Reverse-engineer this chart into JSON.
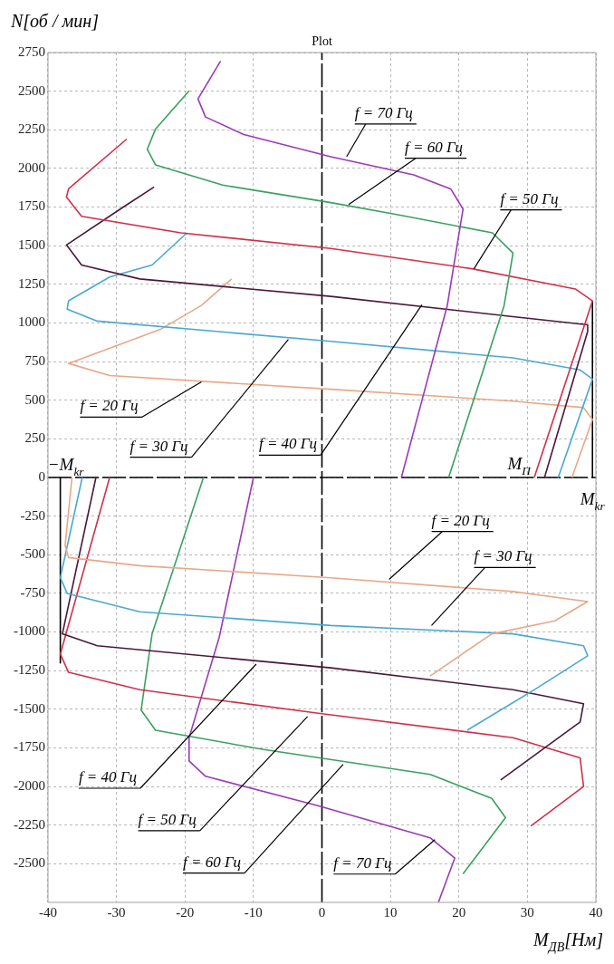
{
  "chart_data": {
    "type": "line",
    "title": "Plot",
    "xlabel": "M$_{ДВ}$[Нм]",
    "ylabel": "N[об / мин]",
    "xlim": [
      -40,
      40
    ],
    "xticks": [
      -40,
      -30,
      -20,
      -10,
      0,
      10,
      20,
      30,
      40
    ],
    "ylim": [
      -2750,
      2750
    ],
    "yticks": [
      -2500,
      -2250,
      -2000,
      -1750,
      -1500,
      -1250,
      -1000,
      -750,
      -500,
      -250,
      0,
      250,
      500,
      750,
      1000,
      1250,
      1500,
      1750,
      2000,
      2250,
      2500,
      2750
    ],
    "grid": true,
    "legend": false,
    "marker": "none",
    "series": [
      {
        "color": "#9a3ab8",
        "x": [
          -14.8,
          -18.1,
          -17,
          -11.4,
          1.3,
          13.4,
          18.8,
          20.6,
          18.3,
          11.6
        ],
        "values": [
          2695,
          2450,
          2333,
          2219,
          2076,
          1958,
          1868,
          1737,
          1113,
          0
        ]
      },
      {
        "color": "#3aa060",
        "x": [
          -19.4,
          -24.3,
          -25.5,
          -24.3,
          -14.5,
          1.3,
          10.9,
          24.9,
          27.9,
          26.6,
          18.5
        ],
        "values": [
          2502,
          2255,
          2124,
          2023,
          1892,
          1779,
          1702,
          1583,
          1452,
          1113,
          0
        ]
      },
      {
        "color": "#d0304a",
        "x": [
          -28.5,
          -37,
          -37.3,
          -35.1,
          -20.6,
          1.3,
          21.9,
          37,
          39.5,
          31
        ],
        "values": [
          2190,
          1868,
          1815,
          1690,
          1583,
          1482,
          1351,
          1220,
          1143,
          0
        ]
      },
      {
        "color": "#4a1838",
        "x": [
          -24.5,
          -29,
          -37.3,
          -35.1,
          -26.6,
          1.3,
          27.9,
          38.8,
          38.8,
          32.5
        ],
        "values": [
          1880,
          1750,
          1505,
          1375,
          1285,
          1172,
          1041,
          988,
          946,
          0
        ]
      },
      {
        "color": "#4aa8d0",
        "x": [
          -19.7,
          -24.8,
          -31,
          -37,
          -37.2,
          -32.8,
          1.3,
          27.9,
          37.7,
          39.5,
          34.5
        ],
        "values": [
          1583,
          1375,
          1297,
          1143,
          1089,
          1012,
          881,
          774,
          696,
          637,
          0
        ]
      },
      {
        "color": "#e8a888",
        "x": [
          -13.2,
          -17.6,
          -23.6,
          -37,
          -31,
          1.3,
          27.9,
          38.2,
          39.5,
          36.5
        ],
        "values": [
          1285,
          1113,
          958,
          738,
          660,
          571,
          494,
          452,
          375,
          0
        ]
      },
      {
        "color": "#e8a888",
        "x": [
          -36.5,
          -37.5,
          -37,
          -26.6,
          1.3,
          27.9,
          38.8,
          34,
          24.8,
          15.8
        ],
        "values": [
          0,
          -440,
          -518,
          -571,
          -649,
          -738,
          -803,
          -928,
          -1012,
          -1285
        ]
      },
      {
        "color": "#4aa8d0",
        "x": [
          -35,
          -38.2,
          -37.2,
          -26.6,
          1.3,
          27.9,
          38.2,
          38.8,
          31,
          21.2
        ],
        "values": [
          0,
          -649,
          -750,
          -869,
          -958,
          -1012,
          -1089,
          -1154,
          -1374,
          -1636
        ]
      },
      {
        "color": "#4a1838",
        "x": [
          -33,
          -37.9,
          -32.8,
          1.3,
          27.9,
          38.2,
          37.7,
          26.1
        ],
        "values": [
          0,
          -1012,
          -1089,
          -1232,
          -1374,
          -1464,
          -1583,
          -1958
        ]
      },
      {
        "color": "#d0304a",
        "x": [
          -31,
          -38.2,
          -37,
          -26.6,
          0,
          27.9,
          37.7,
          38.2,
          30.5
        ],
        "values": [
          0,
          -1143,
          -1261,
          -1374,
          -1529,
          -1684,
          -1815,
          -2000,
          -2255
        ]
      },
      {
        "color": "#3aa060",
        "x": [
          -17.3,
          -24.8,
          -26.4,
          -24.3,
          -8.5,
          15.8,
          24.8,
          26.8,
          20.6
        ],
        "values": [
          0,
          -1012,
          -1505,
          -1636,
          -1761,
          -1922,
          -2077,
          -2202,
          -2565
        ]
      },
      {
        "color": "#9a3ab8",
        "x": [
          -10,
          -15,
          -19.4,
          -19.4,
          -17,
          -0.6,
          15.8,
          19.4,
          17
        ],
        "values": [
          0,
          -1035,
          -1684,
          -1835,
          -1934,
          -2124,
          -2332,
          -2463,
          -2750
        ]
      },
      {
        "color": "#000000",
        "x": [
          39.5,
          39.5
        ],
        "values": [
          0,
          1143
        ]
      },
      {
        "color": "#000000",
        "x": [
          -38.2,
          -38.2
        ],
        "values": [
          0,
          -1200
        ]
      },
      {
        "color": "#000000",
        "x": [
          -40,
          40
        ],
        "values": [
          0,
          0
        ],
        "line_style": "dashed"
      },
      {
        "color": "#000000",
        "x": [
          0,
          0
        ],
        "values": [
          -2750,
          2750
        ],
        "line_style": "dashed"
      }
    ],
    "annotations": [
      {
        "text": "f = 70 Гц",
        "x": 3.6,
        "y": 2076
      },
      {
        "text": "f = 60 Гц",
        "x": 3.9,
        "y": 1767
      },
      {
        "text": "f = 50 Гц",
        "x": 22.2,
        "y": 1351
      },
      {
        "text": "f = 20 Гц",
        "x": -17.6,
        "y": 619
      },
      {
        "text": "f = 30 Гц",
        "x": -4.9,
        "y": 893
      },
      {
        "text": "f = 40 Гц",
        "x": 14.6,
        "y": 1118
      },
      {
        "text": "f = 20 Гц",
        "x": 9.8,
        "y": -660
      },
      {
        "text": "f = 30 Гц",
        "x": 16,
        "y": -958
      },
      {
        "text": "f = 40 Гц",
        "x": -9.6,
        "y": -1208
      },
      {
        "text": "f = 50 Гц",
        "x": -2.1,
        "y": -1547
      },
      {
        "text": "f = 60 Гц",
        "x": 3.1,
        "y": -1856
      },
      {
        "text": "f = 70 Гц",
        "x": 16.5,
        "y": -2344
      },
      {
        "text": "M$_{П}$",
        "x": 31,
        "y": 0
      },
      {
        "text": "−M$_{kr}$",
        "x": -38.2,
        "y": 0
      },
      {
        "text": "M$_{kr}$",
        "x": 39.5,
        "y": 0
      }
    ]
  }
}
